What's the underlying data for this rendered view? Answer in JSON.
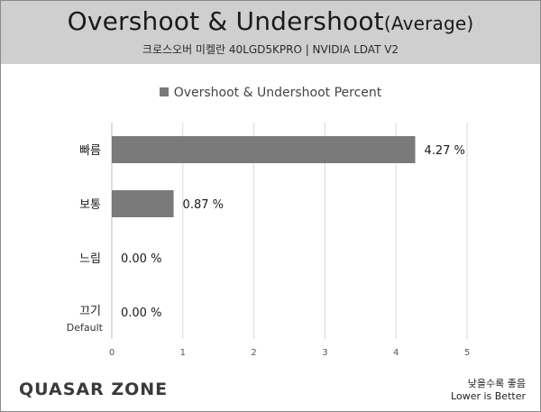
{
  "header": {
    "title_main": "Overshoot & Undershoot",
    "title_suffix": "(Average)",
    "subtitle": "크로스오버 미켈란 40LGD5KPRO  |  NVIDIA LDAT V2"
  },
  "footer": {
    "logo": "QUASAR ZONE",
    "note_ko": "낮을수록 좋음",
    "note_en": "Lower is Better"
  },
  "colors": {
    "bar": "#7a7a7a",
    "header_bg": "#cfcfcf",
    "grid": "#d9d9d9"
  },
  "chart_data": {
    "type": "bar",
    "orientation": "horizontal",
    "title": "Overshoot & Undershoot(Average)",
    "categories": [
      "빠름",
      "보통",
      "느림",
      "끄기"
    ],
    "category_sublabels": [
      "",
      "",
      "",
      "Default"
    ],
    "series": [
      {
        "name": "Overshoot & Undershoot Percent",
        "values": [
          4.27,
          0.87,
          0.0,
          0.0
        ]
      }
    ],
    "value_labels": [
      "4.27 %",
      "0.87 %",
      "0.00 %",
      "0.00 %"
    ],
    "xlim": [
      0,
      5
    ],
    "xticks": [
      "0",
      "1",
      "2",
      "3",
      "4",
      "5"
    ],
    "grid": true,
    "legend": "top-center"
  }
}
